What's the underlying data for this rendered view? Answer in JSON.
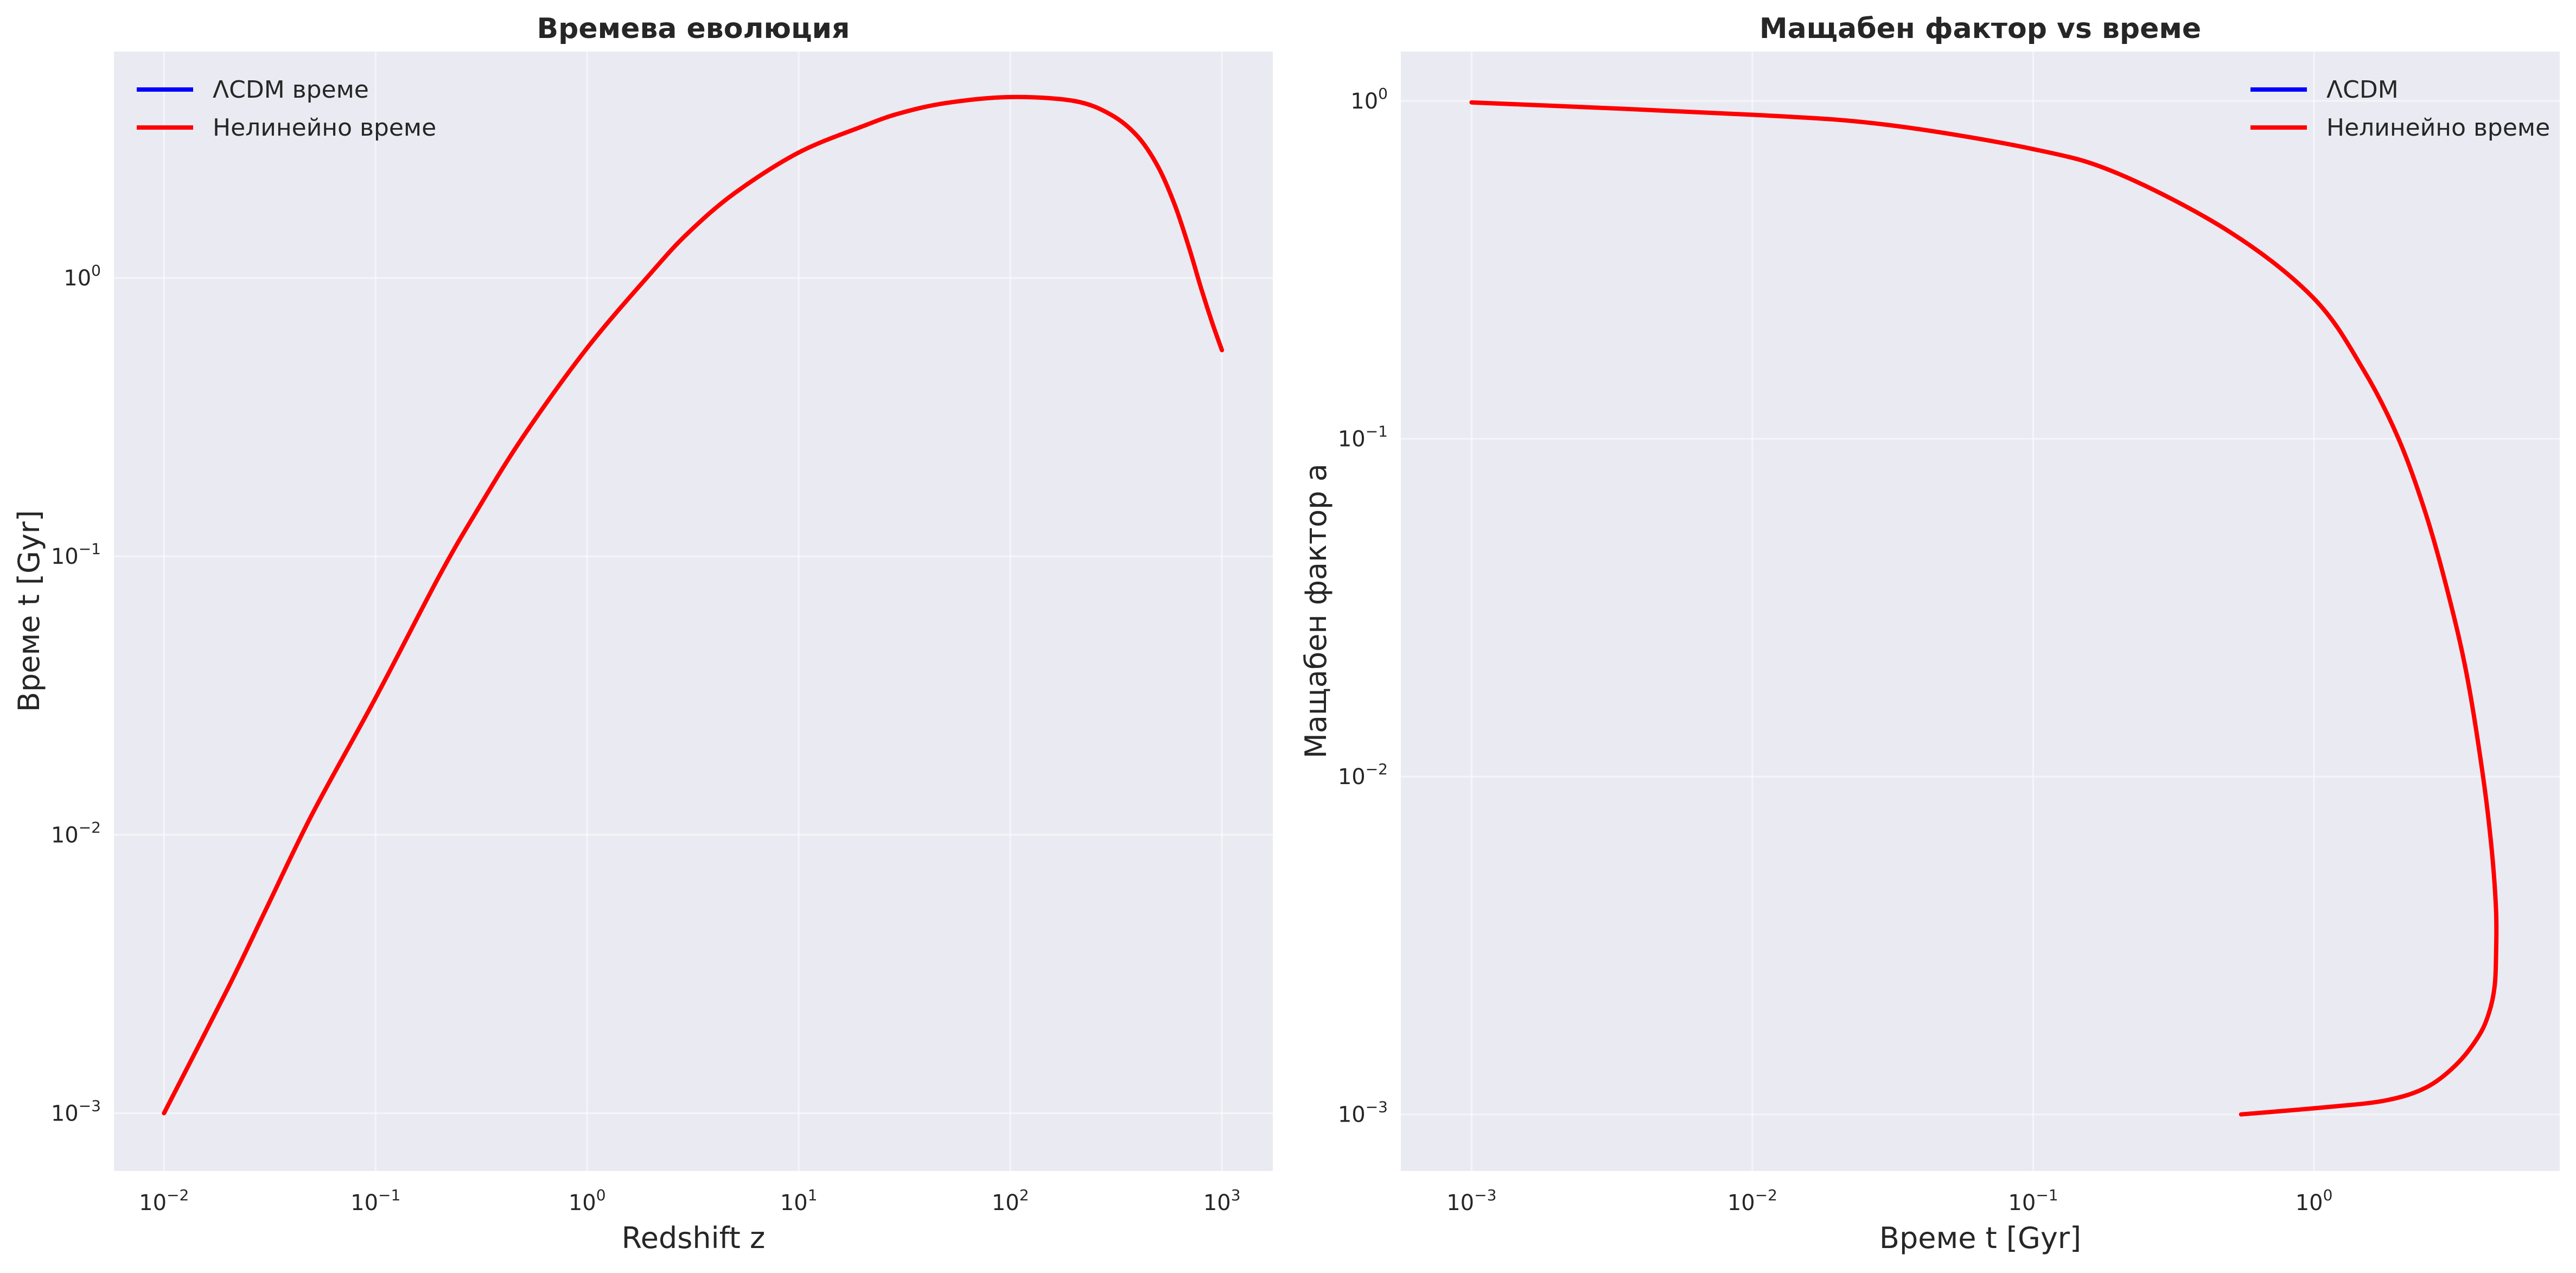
{
  "chart_data": [
    {
      "type": "line",
      "title": "Времева еволюция",
      "xlabel": "Redshift z",
      "ylabel": "Време t [Gyr]",
      "xscale": "log",
      "yscale": "log",
      "xlim": [
        0.0058,
        1740
      ],
      "ylim": [
        0.00062,
        6.5
      ],
      "grid": true,
      "legend_position": "top-left",
      "x_ticks": [
        {
          "base": "10",
          "exp": "−2",
          "value": 0.01
        },
        {
          "base": "10",
          "exp": "−1",
          "value": 0.1
        },
        {
          "base": "10",
          "exp": "0",
          "value": 1
        },
        {
          "base": "10",
          "exp": "1",
          "value": 10
        },
        {
          "base": "10",
          "exp": "2",
          "value": 100
        },
        {
          "base": "10",
          "exp": "3",
          "value": 1000
        }
      ],
      "y_ticks": [
        {
          "base": "10",
          "exp": "−3",
          "value": 0.001
        },
        {
          "base": "10",
          "exp": "−2",
          "value": 0.01
        },
        {
          "base": "10",
          "exp": "−1",
          "value": 0.1
        },
        {
          "base": "10",
          "exp": "0",
          "value": 1
        }
      ],
      "series": [
        {
          "name": "ΛCDM време",
          "color": "#0000ff",
          "x": [],
          "y": []
        },
        {
          "name": "Нелинейно време",
          "color": "#ff0000",
          "x": [
            0.01,
            0.02,
            0.03,
            0.05,
            0.1,
            0.2,
            0.3,
            0.5,
            1,
            2,
            3,
            5,
            10,
            20,
            30,
            50,
            100,
            200,
            300,
            400,
            500,
            600,
            700,
            800,
            900,
            1000
          ],
          "y": [
            0.001,
            0.0028,
            0.0053,
            0.0118,
            0.031,
            0.085,
            0.145,
            0.27,
            0.56,
            1.04,
            1.45,
            2.02,
            2.82,
            3.5,
            3.9,
            4.25,
            4.46,
            4.32,
            3.85,
            3.22,
            2.5,
            1.82,
            1.28,
            0.91,
            0.69,
            0.55
          ]
        }
      ]
    },
    {
      "type": "line",
      "title": "Мащабен фактор vs време",
      "xlabel": "Време t [Gyr]",
      "ylabel": "Мащабен фактор a",
      "xscale": "log",
      "yscale": "log",
      "xlim": [
        0.00056,
        7.5
      ],
      "ylim": [
        0.00068,
        1.4
      ],
      "grid": true,
      "legend_position": "top-right",
      "x_ticks": [
        {
          "base": "10",
          "exp": "−3",
          "value": 0.001
        },
        {
          "base": "10",
          "exp": "−2",
          "value": 0.01
        },
        {
          "base": "10",
          "exp": "−1",
          "value": 0.1
        },
        {
          "base": "10",
          "exp": "0",
          "value": 1
        }
      ],
      "y_ticks": [
        {
          "base": "10",
          "exp": "−3",
          "value": 0.001
        },
        {
          "base": "10",
          "exp": "−2",
          "value": 0.01
        },
        {
          "base": "10",
          "exp": "−1",
          "value": 0.1
        },
        {
          "base": "10",
          "exp": "0",
          "value": 1
        }
      ],
      "series": [
        {
          "name": "ΛCDM",
          "color": "#0000ff",
          "x": [],
          "y": []
        },
        {
          "name": "Нелинейно време",
          "color": "#ff0000",
          "x": [
            0.001,
            0.01,
            0.03,
            0.1,
            0.2,
            0.5,
            1,
            1.5,
            2,
            2.5,
            3,
            3.5,
            4,
            4.3,
            4.45,
            4.45,
            4.4,
            4.2,
            3.85,
            3.2,
            2.5,
            1.8,
            1.1,
            0.55
          ],
          "y": [
            0.99,
            0.91,
            0.85,
            0.72,
            0.61,
            0.41,
            0.26,
            0.16,
            0.1,
            0.06,
            0.035,
            0.02,
            0.01,
            0.006,
            0.004,
            0.003,
            0.0024,
            0.002,
            0.0017,
            0.0014,
            0.0012,
            0.0011,
            0.00105,
            0.001
          ]
        }
      ]
    }
  ]
}
